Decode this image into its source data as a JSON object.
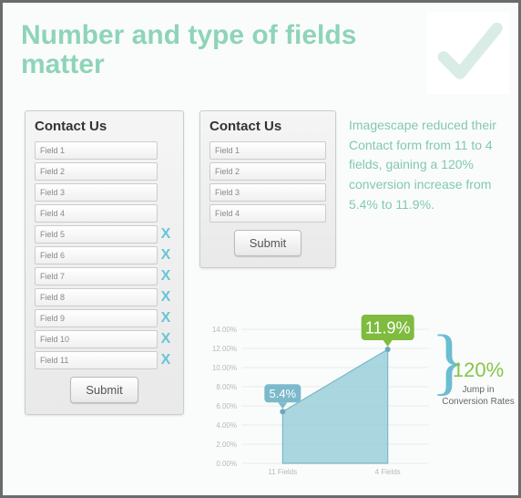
{
  "title": "Number and type of fields matter",
  "checkmark_color": "#d9ece5",
  "form_left": {
    "heading": "Contact Us",
    "fields": [
      {
        "label": "Field 1",
        "removed": false
      },
      {
        "label": "Field 2",
        "removed": false
      },
      {
        "label": "Field 3",
        "removed": false
      },
      {
        "label": "Field 4",
        "removed": false
      },
      {
        "label": "Field 5",
        "removed": true
      },
      {
        "label": "Field 6",
        "removed": true
      },
      {
        "label": "Field 7",
        "removed": true
      },
      {
        "label": "Field 8",
        "removed": true
      },
      {
        "label": "Field 9",
        "removed": true
      },
      {
        "label": "Field 10",
        "removed": true
      },
      {
        "label": "Field 11",
        "removed": true
      }
    ],
    "submit_label": "Submit"
  },
  "form_right": {
    "heading": "Contact Us",
    "fields": [
      {
        "label": "Field 1"
      },
      {
        "label": "Field 2"
      },
      {
        "label": "Field 3"
      },
      {
        "label": "Field 4"
      }
    ],
    "submit_label": "Submit"
  },
  "description": "Imagescape reduced their Contact form from 11 to 4 fields, gaining a 120% conversion increase from 5.4% to 11.9%.",
  "x_mark_color": "#69c5d6",
  "chart": {
    "type": "area",
    "categories": [
      "11 Fields",
      "4 Fields"
    ],
    "values": [
      5.4,
      11.9
    ],
    "ylim": [
      0,
      14
    ],
    "ytick_step": 2,
    "ytick_format_suffix": ".00%",
    "axis_label_fontsize": 8,
    "axis_color": "#b8b8b8",
    "grid_color": "#d8d8d8",
    "area_fill": "#8fc9d6",
    "area_fill_opacity": 0.75,
    "line_color": "#7ab8c8",
    "marker_color": "#6aa9bb",
    "callouts": [
      {
        "text": "5.4%",
        "bg": "#7cb9cb",
        "text_color": "#ffffff",
        "fontsize": 13
      },
      {
        "text": "11.9%",
        "bg": "#7fbb3e",
        "text_color": "#ffffff",
        "fontsize": 18
      }
    ],
    "background_color": "#fbfdfd"
  },
  "jump": {
    "percent": "120%",
    "percent_color": "#86c54a",
    "text": "Jump in Conversion Rates",
    "brace_color": "#6bbdd1"
  }
}
